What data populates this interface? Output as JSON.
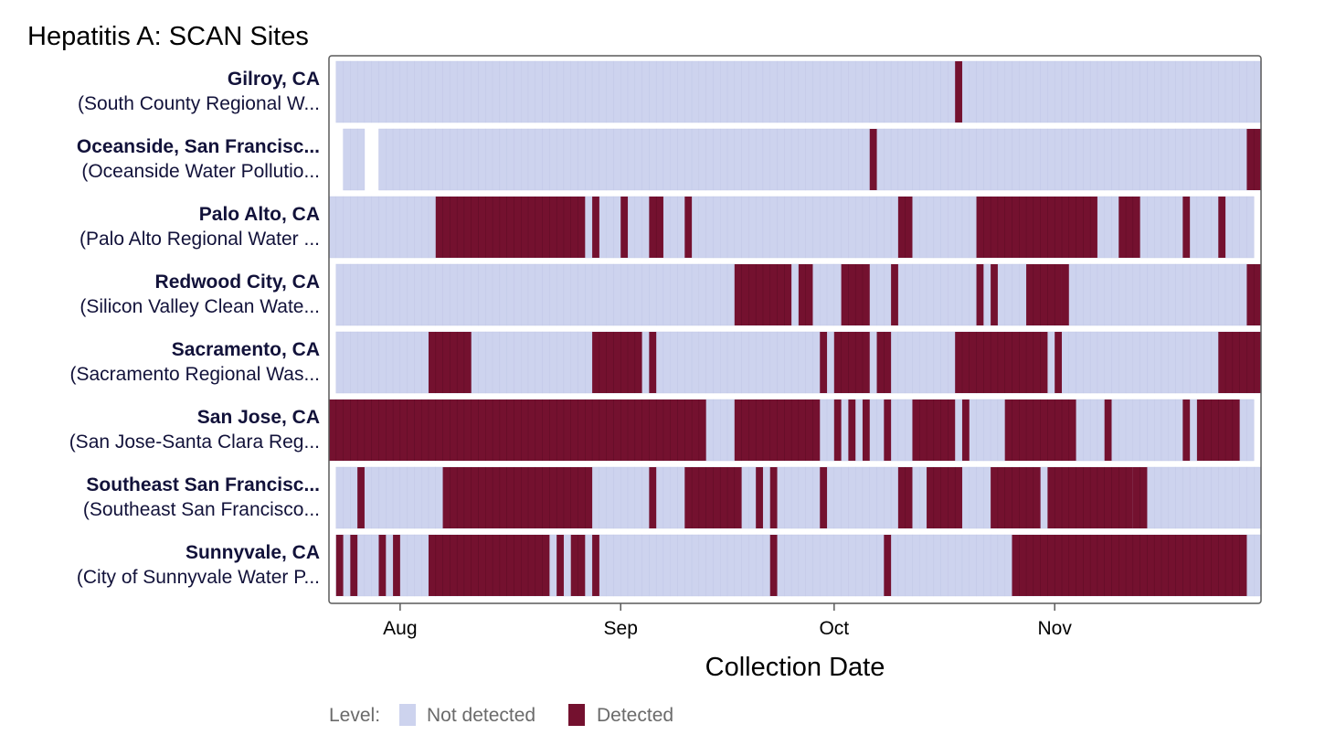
{
  "chart_data": {
    "type": "heatmap",
    "title": "Hepatitis A: SCAN Sites",
    "xlabel": "Collection Date",
    "ylabel": "",
    "x_range": [
      "2024-07-22",
      "2024-11-30"
    ],
    "x_ticks": [
      {
        "date": "2024-08-01",
        "label": "Aug"
      },
      {
        "date": "2024-09-01",
        "label": "Sep"
      },
      {
        "date": "2024-10-01",
        "label": "Oct"
      },
      {
        "date": "2024-11-01",
        "label": "Nov"
      }
    ],
    "legend": {
      "title": "Level:",
      "placement": "bottom",
      "entries": [
        {
          "label": "Not detected",
          "color": "#cdd3ee"
        },
        {
          "label": "Detected",
          "color": "#74112f"
        }
      ]
    },
    "colors": {
      "not_detected": "#cdd3ee",
      "detected": "#74112f",
      "cell_stroke": "#c0c6e6",
      "text": "#12123a",
      "axis": "#5a5a5a"
    },
    "sites": [
      {
        "name": "Gilroy, CA",
        "facility": "(South County Regional W...",
        "coverage": [
          [
            "2024-07-23",
            "2024-11-29"
          ]
        ],
        "detected": [
          [
            "2024-10-18",
            "2024-10-18"
          ]
        ]
      },
      {
        "name": "Oceanside, San Francisc...",
        "facility": "(Oceanside Water Pollutio...",
        "coverage": [
          [
            "2024-07-24",
            "2024-07-26"
          ],
          [
            "2024-07-29",
            "2024-08-15"
          ],
          [
            "2024-08-16",
            "2024-09-04"
          ],
          [
            "2024-09-05",
            "2024-10-19"
          ],
          [
            "2024-10-20",
            "2024-11-29"
          ]
        ],
        "detected": [
          [
            "2024-10-06",
            "2024-10-06"
          ],
          [
            "2024-11-28",
            "2024-11-29"
          ]
        ]
      },
      {
        "name": "Palo Alto, CA",
        "facility": "(Palo Alto Regional Water ...",
        "coverage": [
          [
            "2024-07-22",
            "2024-09-11"
          ],
          [
            "2024-09-12",
            "2024-11-28"
          ]
        ],
        "detected": [
          [
            "2024-08-06",
            "2024-08-26"
          ],
          [
            "2024-08-28",
            "2024-08-28"
          ],
          [
            "2024-09-01",
            "2024-09-01"
          ],
          [
            "2024-09-05",
            "2024-09-06"
          ],
          [
            "2024-09-10",
            "2024-09-10"
          ],
          [
            "2024-10-10",
            "2024-10-11"
          ],
          [
            "2024-10-21",
            "2024-11-06"
          ],
          [
            "2024-11-10",
            "2024-11-12"
          ],
          [
            "2024-11-19",
            "2024-11-19"
          ],
          [
            "2024-11-24",
            "2024-11-24"
          ]
        ]
      },
      {
        "name": "Redwood City, CA",
        "facility": "(Silicon Valley Clean Wate...",
        "coverage": [
          [
            "2024-07-23",
            "2024-11-29"
          ]
        ],
        "detected": [
          [
            "2024-09-17",
            "2024-09-24"
          ],
          [
            "2024-09-26",
            "2024-09-27"
          ],
          [
            "2024-10-02",
            "2024-10-05"
          ],
          [
            "2024-10-09",
            "2024-10-09"
          ],
          [
            "2024-10-21",
            "2024-10-21"
          ],
          [
            "2024-10-23",
            "2024-10-23"
          ],
          [
            "2024-10-28",
            "2024-11-01"
          ],
          [
            "2024-11-02",
            "2024-11-02"
          ],
          [
            "2024-11-28",
            "2024-11-29"
          ]
        ]
      },
      {
        "name": "Sacramento, CA",
        "facility": "(Sacramento Regional Was...",
        "coverage": [
          [
            "2024-07-23",
            "2024-11-29"
          ]
        ],
        "detected": [
          [
            "2024-08-05",
            "2024-08-10"
          ],
          [
            "2024-08-28",
            "2024-09-03"
          ],
          [
            "2024-09-05",
            "2024-09-05"
          ],
          [
            "2024-09-29",
            "2024-09-29"
          ],
          [
            "2024-10-01",
            "2024-10-05"
          ],
          [
            "2024-10-07",
            "2024-10-08"
          ],
          [
            "2024-10-18",
            "2024-10-30"
          ],
          [
            "2024-11-01",
            "2024-11-01"
          ],
          [
            "2024-11-24",
            "2024-11-29"
          ]
        ]
      },
      {
        "name": "San Jose, CA",
        "facility": "(San Jose-Santa Clara Reg...",
        "coverage": [
          [
            "2024-07-22",
            "2024-11-28"
          ]
        ],
        "detected": [
          [
            "2024-07-22",
            "2024-09-12"
          ],
          [
            "2024-09-17",
            "2024-09-28"
          ],
          [
            "2024-10-01",
            "2024-10-01"
          ],
          [
            "2024-10-03",
            "2024-10-03"
          ],
          [
            "2024-10-05",
            "2024-10-05"
          ],
          [
            "2024-10-08",
            "2024-10-08"
          ],
          [
            "2024-10-12",
            "2024-10-17"
          ],
          [
            "2024-10-19",
            "2024-10-19"
          ],
          [
            "2024-10-25",
            "2024-11-03"
          ],
          [
            "2024-11-08",
            "2024-11-08"
          ],
          [
            "2024-11-19",
            "2024-11-19"
          ],
          [
            "2024-11-21",
            "2024-11-26"
          ]
        ]
      },
      {
        "name": "Southeast San Francisc...",
        "facility": "(Southeast San Francisco...",
        "coverage": [
          [
            "2024-07-23",
            "2024-09-04"
          ],
          [
            "2024-09-05",
            "2024-10-30"
          ],
          [
            "2024-10-31",
            "2024-11-29"
          ]
        ],
        "detected": [
          [
            "2024-07-26",
            "2024-07-26"
          ],
          [
            "2024-08-07",
            "2024-08-27"
          ],
          [
            "2024-09-05",
            "2024-09-05"
          ],
          [
            "2024-09-10",
            "2024-09-17"
          ],
          [
            "2024-09-20",
            "2024-09-20"
          ],
          [
            "2024-09-22",
            "2024-09-22"
          ],
          [
            "2024-09-29",
            "2024-09-29"
          ],
          [
            "2024-10-10",
            "2024-10-11"
          ],
          [
            "2024-10-14",
            "2024-10-18"
          ],
          [
            "2024-10-23",
            "2024-10-29"
          ],
          [
            "2024-10-31",
            "2024-11-11"
          ],
          [
            "2024-11-12",
            "2024-11-13"
          ]
        ]
      },
      {
        "name": "Sunnyvale, CA",
        "facility": "(City of Sunnyvale Water P...",
        "coverage": [
          [
            "2024-07-23",
            "2024-11-29"
          ]
        ],
        "detected": [
          [
            "2024-07-23",
            "2024-07-23"
          ],
          [
            "2024-07-25",
            "2024-07-25"
          ],
          [
            "2024-07-29",
            "2024-07-29"
          ],
          [
            "2024-07-31",
            "2024-07-31"
          ],
          [
            "2024-08-05",
            "2024-08-21"
          ],
          [
            "2024-08-23",
            "2024-08-23"
          ],
          [
            "2024-08-25",
            "2024-08-26"
          ],
          [
            "2024-08-28",
            "2024-08-28"
          ],
          [
            "2024-09-22",
            "2024-09-22"
          ],
          [
            "2024-10-08",
            "2024-10-08"
          ],
          [
            "2024-10-26",
            "2024-11-27"
          ]
        ]
      }
    ]
  }
}
